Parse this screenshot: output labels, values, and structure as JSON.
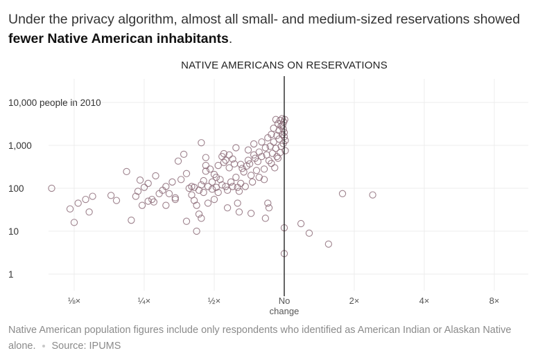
{
  "headline": {
    "text_before": "Under the privacy algorithm, almost all small- and medium-sized reservations showed ",
    "bold_text": "fewer Native American inhabitants",
    "text_after": "."
  },
  "footnote": {
    "note": "Native American population figures include only respondents who identified as American Indian or Alaskan Native alone.",
    "source": "Source: IPUMS"
  },
  "chart_data": {
    "type": "scatter",
    "title": "NATIVE AMERICANS ON RESERVATIONS",
    "xscale": "log2",
    "yscale": "log10",
    "xlim": [
      0.09,
      10.5
    ],
    "ylim": [
      1,
      10000
    ],
    "x_ticks": [
      {
        "value": 0.125,
        "label": "⅛×"
      },
      {
        "value": 0.25,
        "label": "¼×"
      },
      {
        "value": 0.5,
        "label": "½×"
      },
      {
        "value": 1,
        "label": "No",
        "label2": "change"
      },
      {
        "value": 2,
        "label": "2×"
      },
      {
        "value": 4,
        "label": "4×"
      },
      {
        "value": 8,
        "label": "8×"
      }
    ],
    "y_ticks": [
      {
        "value": 10000,
        "label": "10,000 people in 2010"
      },
      {
        "value": 1000,
        "label": "1,000"
      },
      {
        "value": 100,
        "label": "100"
      },
      {
        "value": 10,
        "label": "10"
      },
      {
        "value": 1,
        "label": "1"
      }
    ],
    "colors": {
      "point": "#8c6b78",
      "reference_line": "#111111",
      "grid": "#ececec",
      "tick_label": "#555555"
    },
    "points": [
      [
        0.1,
        100
      ],
      [
        0.12,
        33
      ],
      [
        0.13,
        45
      ],
      [
        0.125,
        16
      ],
      [
        0.14,
        55
      ],
      [
        0.145,
        28
      ],
      [
        0.15,
        65
      ],
      [
        0.18,
        68
      ],
      [
        0.19,
        52
      ],
      [
        0.21,
        245
      ],
      [
        0.22,
        18
      ],
      [
        0.23,
        65
      ],
      [
        0.235,
        85
      ],
      [
        0.24,
        155
      ],
      [
        0.245,
        40
      ],
      [
        0.25,
        105
      ],
      [
        0.26,
        130
      ],
      [
        0.26,
        50
      ],
      [
        0.27,
        55
      ],
      [
        0.275,
        48
      ],
      [
        0.28,
        195
      ],
      [
        0.29,
        75
      ],
      [
        0.3,
        90
      ],
      [
        0.31,
        110
      ],
      [
        0.31,
        40
      ],
      [
        0.32,
        75
      ],
      [
        0.33,
        140
      ],
      [
        0.34,
        60
      ],
      [
        0.34,
        55
      ],
      [
        0.35,
        430
      ],
      [
        0.36,
        160
      ],
      [
        0.37,
        620
      ],
      [
        0.38,
        220
      ],
      [
        0.38,
        17
      ],
      [
        0.39,
        100
      ],
      [
        0.4,
        70
      ],
      [
        0.4,
        110
      ],
      [
        0.41,
        105
      ],
      [
        0.41,
        52
      ],
      [
        0.42,
        40
      ],
      [
        0.42,
        10
      ],
      [
        0.43,
        90
      ],
      [
        0.43,
        25
      ],
      [
        0.44,
        1150
      ],
      [
        0.44,
        120
      ],
      [
        0.44,
        20
      ],
      [
        0.45,
        150
      ],
      [
        0.45,
        80
      ],
      [
        0.46,
        520
      ],
      [
        0.46,
        250
      ],
      [
        0.46,
        340
      ],
      [
        0.47,
        110
      ],
      [
        0.47,
        45
      ],
      [
        0.48,
        280
      ],
      [
        0.49,
        140
      ],
      [
        0.49,
        95
      ],
      [
        0.5,
        210
      ],
      [
        0.5,
        55
      ],
      [
        0.51,
        180
      ],
      [
        0.51,
        105
      ],
      [
        0.52,
        340
      ],
      [
        0.52,
        80
      ],
      [
        0.53,
        160
      ],
      [
        0.54,
        120
      ],
      [
        0.54,
        550
      ],
      [
        0.55,
        640
      ],
      [
        0.55,
        400
      ],
      [
        0.56,
        450
      ],
      [
        0.56,
        110
      ],
      [
        0.57,
        35
      ],
      [
        0.57,
        90
      ],
      [
        0.58,
        600
      ],
      [
        0.58,
        300
      ],
      [
        0.59,
        140
      ],
      [
        0.6,
        480
      ],
      [
        0.6,
        110
      ],
      [
        0.61,
        370
      ],
      [
        0.62,
        880
      ],
      [
        0.62,
        180
      ],
      [
        0.63,
        105
      ],
      [
        0.63,
        45
      ],
      [
        0.64,
        85
      ],
      [
        0.64,
        28
      ],
      [
        0.65,
        360
      ],
      [
        0.65,
        130
      ],
      [
        0.66,
        290
      ],
      [
        0.67,
        240
      ],
      [
        0.68,
        110
      ],
      [
        0.69,
        330
      ],
      [
        0.7,
        450
      ],
      [
        0.7,
        780
      ],
      [
        0.71,
        370
      ],
      [
        0.72,
        200
      ],
      [
        0.72,
        26
      ],
      [
        0.73,
        140
      ],
      [
        0.74,
        1080
      ],
      [
        0.74,
        600
      ],
      [
        0.75,
        500
      ],
      [
        0.76,
        260
      ],
      [
        0.77,
        420
      ],
      [
        0.78,
        700
      ],
      [
        0.78,
        180
      ],
      [
        0.8,
        550
      ],
      [
        0.8,
        1200
      ],
      [
        0.82,
        280
      ],
      [
        0.82,
        160
      ],
      [
        0.83,
        880
      ],
      [
        0.83,
        20
      ],
      [
        0.84,
        600
      ],
      [
        0.85,
        1500
      ],
      [
        0.85,
        45
      ],
      [
        0.86,
        440
      ],
      [
        0.86,
        35
      ],
      [
        0.87,
        950
      ],
      [
        0.88,
        380
      ],
      [
        0.88,
        1800
      ],
      [
        0.89,
        650
      ],
      [
        0.9,
        2500
      ],
      [
        0.9,
        1200
      ],
      [
        0.91,
        300
      ],
      [
        0.92,
        4000
      ],
      [
        0.92,
        850
      ],
      [
        0.93,
        550
      ],
      [
        0.93,
        1700
      ],
      [
        0.94,
        3200
      ],
      [
        0.94,
        500
      ],
      [
        0.95,
        2200
      ],
      [
        0.95,
        1400
      ],
      [
        0.96,
        3800
      ],
      [
        0.96,
        680
      ],
      [
        0.97,
        2800
      ],
      [
        0.97,
        950
      ],
      [
        0.98,
        4200
      ],
      [
        0.98,
        1800
      ],
      [
        0.985,
        3000
      ],
      [
        0.99,
        2400
      ],
      [
        0.99,
        1100
      ],
      [
        0.995,
        3500
      ],
      [
        1.0,
        1600
      ],
      [
        1.0,
        2000
      ],
      [
        1.005,
        4000
      ],
      [
        1.01,
        750
      ],
      [
        1.01,
        1300
      ],
      [
        1.0,
        12
      ],
      [
        1.0,
        3
      ],
      [
        1.18,
        15
      ],
      [
        1.28,
        9
      ],
      [
        1.55,
        5
      ],
      [
        1.78,
        75
      ],
      [
        2.4,
        70
      ]
    ]
  }
}
